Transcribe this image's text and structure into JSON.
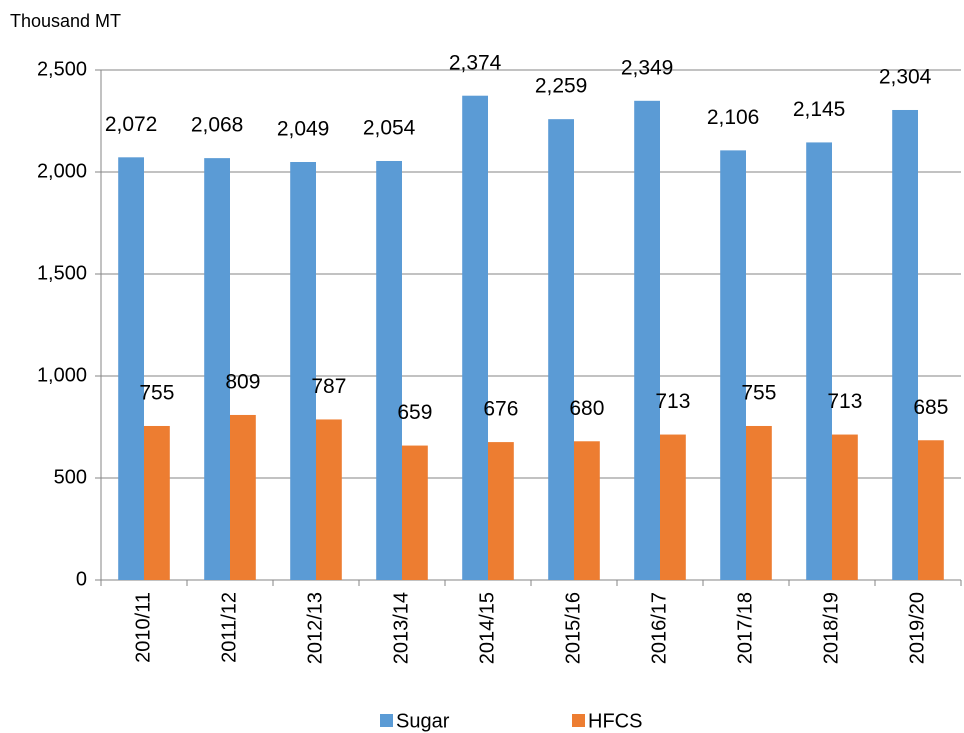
{
  "chart_data": {
    "type": "bar",
    "y_label": "Thousand MT",
    "categories": [
      "2010/11",
      "2011/12",
      "2012/13",
      "2013/14",
      "2014/15",
      "2015/16",
      "2016/17",
      "2017/18",
      "2018/19",
      "2019/20"
    ],
    "series": [
      {
        "name": "Sugar",
        "color": "#5b9bd5",
        "values": [
          2072,
          2068,
          2049,
          2054,
          2374,
          2259,
          2349,
          2106,
          2145,
          2304
        ],
        "value_labels": [
          "2,072",
          "2,068",
          "2,049",
          "2,054",
          "2,374",
          "2,259",
          "2,349",
          "2,106",
          "2,145",
          "2,304"
        ]
      },
      {
        "name": "HFCS",
        "color": "#ed7d31",
        "values": [
          755,
          809,
          787,
          659,
          676,
          680,
          713,
          755,
          713,
          685
        ],
        "value_labels": [
          "755",
          "809",
          "787",
          "659",
          "676",
          "680",
          "713",
          "755",
          "713",
          "685"
        ]
      }
    ],
    "ylim": [
      0,
      2500
    ],
    "yticks": [
      0,
      500,
      {
        "value": 1000,
        "label": "1,000"
      },
      {
        "value": 1500,
        "label": "1,500"
      },
      {
        "value": 2000,
        "label": "2,000"
      },
      {
        "value": 2500,
        "label": "2,500"
      }
    ],
    "grid": true,
    "legend": "bottom"
  }
}
